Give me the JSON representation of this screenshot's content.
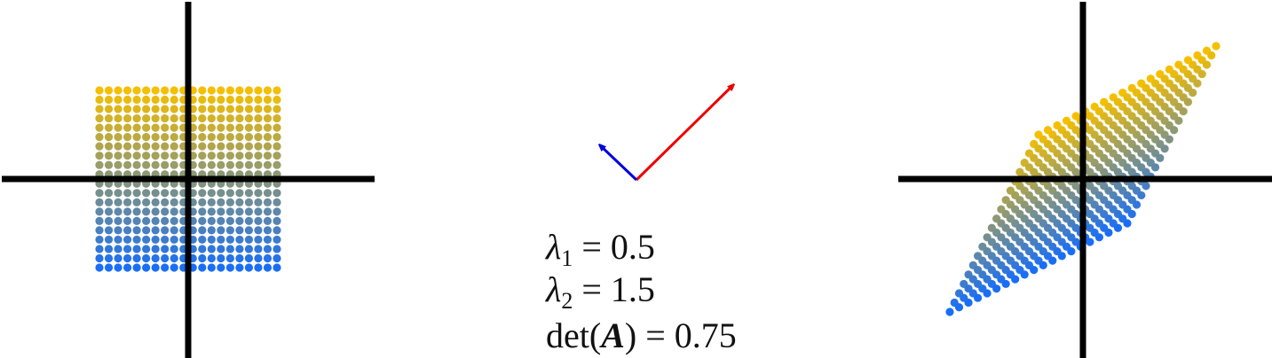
{
  "equations": [
    {
      "symbol": "λ",
      "sub": "1",
      "rhs": " = 0.5"
    },
    {
      "symbol": "λ",
      "sub": "2",
      "rhs": " = 1.5"
    },
    {
      "func": "det(",
      "bold": "A",
      "rhs": ") = 0.75"
    }
  ]
}
